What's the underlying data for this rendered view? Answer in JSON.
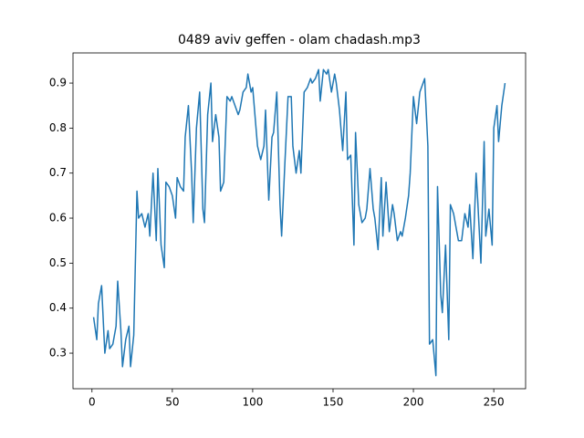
{
  "chart_data": {
    "type": "line",
    "title": "0489 aviv geffen - olam chadash.mp3",
    "color": "#1f77b4",
    "x": [
      1,
      3,
      4,
      6,
      8,
      10,
      11,
      13,
      15,
      16,
      18,
      19,
      21,
      23,
      24,
      26,
      28,
      29,
      31,
      33,
      35,
      36,
      38,
      40,
      41,
      43,
      45,
      46,
      48,
      50,
      52,
      53,
      55,
      57,
      58,
      60,
      62,
      63,
      65,
      67,
      69,
      70,
      72,
      74,
      75,
      77,
      79,
      80,
      82,
      84,
      86,
      87,
      89,
      91,
      92,
      94,
      96,
      97,
      99,
      100,
      103,
      105,
      107,
      108,
      110,
      112,
      113,
      115,
      117,
      118,
      120,
      122,
      124,
      125,
      127,
      129,
      130,
      132,
      134,
      136,
      137,
      139,
      141,
      142,
      144,
      146,
      147,
      149,
      151,
      152,
      154,
      156,
      158,
      159,
      161,
      163,
      164,
      166,
      168,
      170,
      171,
      173,
      175,
      176,
      178,
      180,
      181,
      183,
      185,
      187,
      188,
      190,
      192,
      193,
      195,
      197,
      198,
      200,
      202,
      204,
      205,
      207,
      209,
      210,
      212,
      214,
      215,
      217,
      218,
      220,
      222,
      223,
      225,
      227,
      228,
      230,
      232,
      234,
      235,
      237,
      239,
      240,
      242,
      244,
      245,
      247,
      249,
      250,
      252,
      253,
      255,
      257
    ],
    "values": [
      0.38,
      0.33,
      0.41,
      0.45,
      0.3,
      0.35,
      0.31,
      0.32,
      0.36,
      0.46,
      0.35,
      0.27,
      0.33,
      0.36,
      0.27,
      0.34,
      0.66,
      0.6,
      0.61,
      0.58,
      0.61,
      0.56,
      0.7,
      0.55,
      0.71,
      0.54,
      0.49,
      0.68,
      0.67,
      0.65,
      0.6,
      0.69,
      0.67,
      0.66,
      0.78,
      0.85,
      0.7,
      0.59,
      0.8,
      0.88,
      0.62,
      0.59,
      0.83,
      0.9,
      0.77,
      0.83,
      0.78,
      0.66,
      0.68,
      0.87,
      0.86,
      0.87,
      0.85,
      0.83,
      0.84,
      0.88,
      0.89,
      0.92,
      0.88,
      0.89,
      0.76,
      0.73,
      0.76,
      0.84,
      0.64,
      0.78,
      0.79,
      0.88,
      0.63,
      0.56,
      0.72,
      0.87,
      0.87,
      0.76,
      0.7,
      0.75,
      0.7,
      0.88,
      0.89,
      0.91,
      0.9,
      0.91,
      0.93,
      0.86,
      0.93,
      0.92,
      0.93,
      0.88,
      0.92,
      0.9,
      0.84,
      0.75,
      0.88,
      0.73,
      0.74,
      0.54,
      0.79,
      0.63,
      0.59,
      0.6,
      0.62,
      0.71,
      0.62,
      0.6,
      0.53,
      0.69,
      0.56,
      0.68,
      0.57,
      0.63,
      0.61,
      0.55,
      0.57,
      0.56,
      0.6,
      0.65,
      0.7,
      0.87,
      0.81,
      0.88,
      0.89,
      0.91,
      0.76,
      0.32,
      0.33,
      0.25,
      0.67,
      0.43,
      0.39,
      0.54,
      0.33,
      0.63,
      0.61,
      0.57,
      0.55,
      0.55,
      0.61,
      0.58,
      0.63,
      0.51,
      0.7,
      0.64,
      0.5,
      0.77,
      0.56,
      0.62,
      0.54,
      0.8,
      0.85,
      0.77,
      0.85,
      0.9
    ],
    "xlim": [
      -11.8,
      269.8
    ],
    "ylim": [
      0.221,
      0.967
    ],
    "xticks": [
      0,
      50,
      100,
      150,
      200,
      250
    ],
    "yticks": [
      0.3,
      0.4,
      0.5,
      0.6,
      0.7,
      0.8,
      0.9
    ]
  }
}
